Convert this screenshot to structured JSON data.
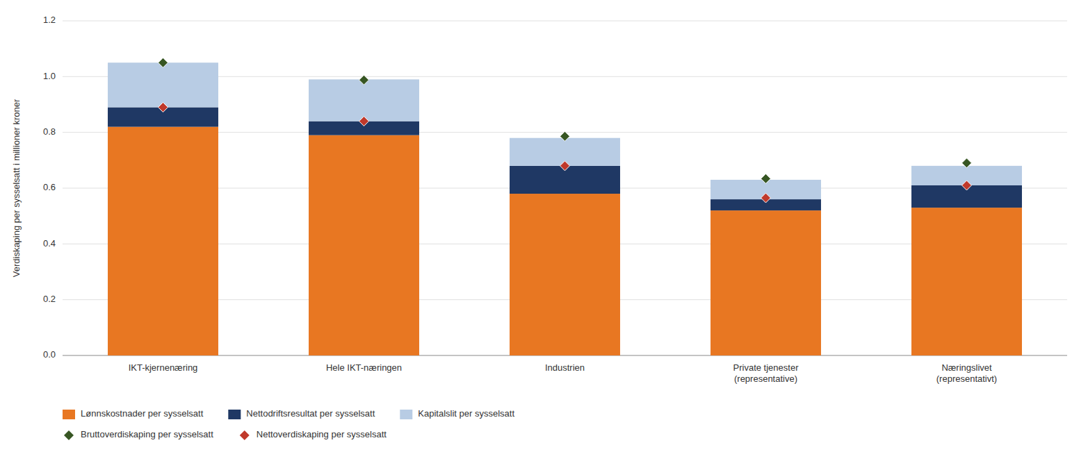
{
  "chart_data": {
    "type": "bar",
    "stacked": true,
    "grid": true,
    "legend": "bottom",
    "ylabel": "Verdiskaping per sysselsatt i millioner kroner",
    "categories": [
      "IKT-kjernenæring",
      "Hele IKT-næringen",
      "Industrien",
      "Private tjenester\n(representative)",
      "Næringslivet\n(representativt)"
    ],
    "ylim": [
      0.0,
      1.2
    ],
    "yticks": [
      {
        "value": 0.0,
        "label": "0.0"
      },
      0.2,
      0.4,
      0.6,
      0.8,
      {
        "value": 1.0,
        "label": "1.0"
      },
      1.2
    ],
    "series": [
      {
        "name": "Lønnskostnader per sysselsatt",
        "type": "bar",
        "color": "#E87722",
        "values": [
          0.82,
          0.79,
          0.58,
          0.52,
          0.53
        ]
      },
      {
        "name": "Nettodriftsresultat per sysselsatt",
        "type": "bar",
        "color": "#1F3864",
        "values": [
          0.07,
          0.05,
          0.1,
          0.04,
          0.08
        ]
      },
      {
        "name": "Kapitalslit per sysselsatt",
        "type": "bar",
        "color": "#B8CCE4",
        "values": [
          0.16,
          0.15,
          0.1,
          0.07,
          0.07
        ]
      },
      {
        "name": "Bruttoverdiskaping per sysselsatt",
        "type": "scatter",
        "marker": "diamond",
        "color": "#375623",
        "values": [
          1.05,
          0.988,
          0.786,
          0.634,
          0.69
        ]
      },
      {
        "name": "Nettoverdiskaping per sysselsatt",
        "type": "scatter",
        "marker": "diamond",
        "color": "#C0392B",
        "values": [
          0.89,
          0.84,
          0.68,
          0.565,
          0.61
        ]
      }
    ]
  }
}
